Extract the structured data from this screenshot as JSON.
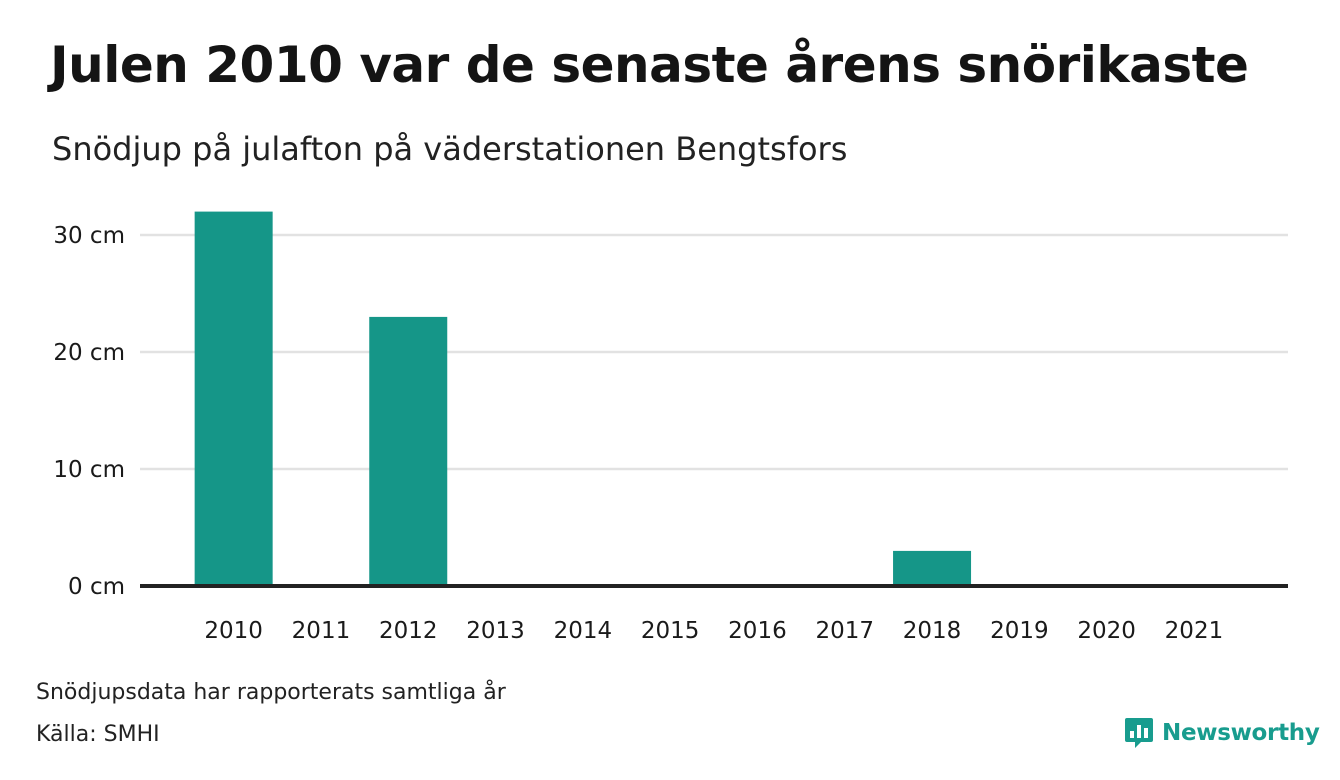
{
  "header": {
    "title": "Julen 2010 var de senaste årens snörikaste",
    "subtitle": "Snödjup på julafton på väderstationen Bengtsfors"
  },
  "footer": {
    "note": "Snödjupsdata har rapporterats samtliga år",
    "source": "Källa: SMHI",
    "brand": "Newsworthy",
    "brand_icon": "newsworthy-logo-icon"
  },
  "colors": {
    "bar": "#159688",
    "grid": "#e2e2e2",
    "axis": "#222222",
    "brand": "#189c8e"
  },
  "chart_data": {
    "type": "bar",
    "categories": [
      "2010",
      "2011",
      "2012",
      "2013",
      "2014",
      "2015",
      "2016",
      "2017",
      "2018",
      "2019",
      "2020",
      "2021"
    ],
    "values": [
      32,
      0,
      23,
      0,
      0,
      0,
      0,
      0,
      3,
      0,
      0,
      0
    ],
    "title": "Julen 2010 var de senaste årens snörikaste",
    "subtitle": "Snödjup på julafton på väderstationen Bengtsfors",
    "xlabel": "",
    "ylabel": "",
    "unit": "cm",
    "yticks": [
      0,
      10,
      20,
      30
    ],
    "ytick_labels": [
      "0 cm",
      "10 cm",
      "20 cm",
      "30 cm"
    ],
    "ylim": [
      0,
      32
    ],
    "grid": true,
    "legend": "none"
  }
}
